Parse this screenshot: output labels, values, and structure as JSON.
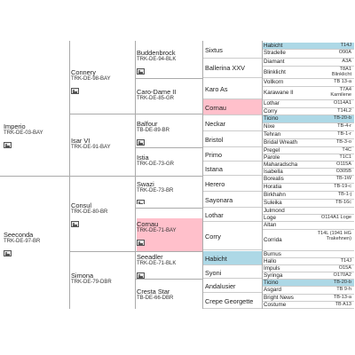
{
  "gen1": [
    {
      "name": "Imperio",
      "id": "TRK-DE-03-BAY"
    },
    {
      "name": "Seeconda",
      "id": "TRK-DE-97-BR"
    }
  ],
  "gen2": [
    {
      "name": "Connery",
      "id": "TRK-DE-98-BAY"
    },
    {
      "name": "Isar VI",
      "id": "TRK-DE-91-BAY"
    },
    {
      "name": "Consul",
      "id": "TRK-DE-80-BR"
    },
    {
      "name": "Simona",
      "id": "TRK-DE-79-DBR"
    }
  ],
  "gen3": [
    {
      "name": "Buddenbrock",
      "id": "TRK-DE-94-BLK"
    },
    {
      "name": "Caro-Dame II",
      "id": "TRK-DE-85-GR"
    },
    {
      "name": "Balfour",
      "id": "TB-DE-89-BR"
    },
    {
      "name": "Istia",
      "id": "TRK-DE-73-GR"
    },
    {
      "name": "Swazi",
      "id": "TRK-DE-73-BR"
    },
    {
      "name": "Cornau",
      "id": "TRK-DE-71-BAY"
    },
    {
      "name": "Seeadler",
      "id": "TRK-DE-71-BLK"
    },
    {
      "name": "Cresta Star",
      "id": "TB-DE-66-DBR"
    }
  ],
  "gen4": [
    {
      "name": "Sixtus"
    },
    {
      "name": "Ballerina XXV"
    },
    {
      "name": "Karo As"
    },
    {
      "name": "Cornau"
    },
    {
      "name": "Neckar"
    },
    {
      "name": "Bristol"
    },
    {
      "name": "Primo"
    },
    {
      "name": "Istana"
    },
    {
      "name": "Herero"
    },
    {
      "name": "Sayonara"
    },
    {
      "name": "Lothar"
    },
    {
      "name": "Corry"
    },
    {
      "name": "Habicht"
    },
    {
      "name": "Syoni"
    },
    {
      "name": "Andalusier"
    },
    {
      "name": "Crepe Georgette"
    }
  ],
  "gen5": [
    {
      "name": "Habicht",
      "code": "T14J"
    },
    {
      "name": "Stradelle",
      "code": "O90A"
    },
    {
      "name": "Diamant",
      "code": "A3A"
    },
    {
      "name": "Blinklicht",
      "code": "T8A1 Blinklicht"
    },
    {
      "name": "Vollkorn",
      "code": "TB 13-a"
    },
    {
      "name": "Karawane II",
      "code": "T7A4 Karnilene"
    },
    {
      "name": "Lothar",
      "code": "O114A1"
    },
    {
      "name": "Corry",
      "code": "T14L2"
    },
    {
      "name": "Ticino",
      "code": "TB-20-b"
    },
    {
      "name": "Nixe",
      "code": "TB-4-r"
    },
    {
      "name": "Tehran",
      "code": "TB-1-r"
    },
    {
      "name": "Bridal Wreath",
      "code": "TB-3-o"
    },
    {
      "name": "Pregel",
      "code": "T4C"
    },
    {
      "name": "Parole",
      "code": "T1C1"
    },
    {
      "name": "Maharadscha",
      "code": "O115A"
    },
    {
      "name": "Isabella",
      "code": "O305B"
    },
    {
      "name": "Borealis",
      "code": "TB-1W"
    },
    {
      "name": "Horatia",
      "code": "TB-19-c"
    },
    {
      "name": "Birkhahn",
      "code": "TB-1-j"
    },
    {
      "name": "Suleika",
      "code": "TB-16c"
    },
    {
      "name": "Julmond",
      "code": ""
    },
    {
      "name": "Loge",
      "code": "O114A1 Loge"
    },
    {
      "name": "Altan",
      "code": ""
    },
    {
      "name": "Corrida",
      "code": "T14L (1941 HG Trakehnen)"
    },
    {
      "name": "Burnus",
      "code": ""
    },
    {
      "name": "Hallo",
      "code": "T14J"
    },
    {
      "name": "Impuls",
      "code": "O15A"
    },
    {
      "name": "Syringa",
      "code": "O170A2"
    },
    {
      "name": "Ticino",
      "code": "TB-20-b"
    },
    {
      "name": "Asgard",
      "code": "TB 9-h"
    },
    {
      "name": "Bright News",
      "code": "TB-13-a"
    },
    {
      "name": "Costume",
      "code": "TB A13"
    }
  ],
  "colors": {
    "duplicate_blue": "#add8e6",
    "duplicate_pink": "#ffc0cb"
  }
}
